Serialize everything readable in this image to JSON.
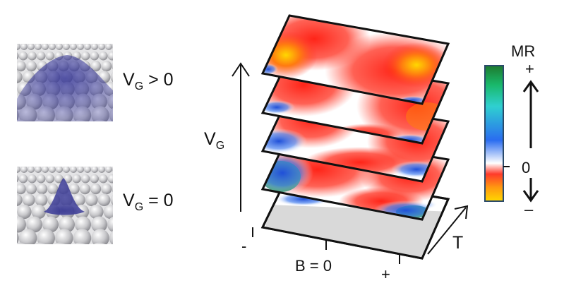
{
  "left_panels": {
    "top_label": {
      "main": "V",
      "sub": "G",
      "rest": " > 0"
    },
    "bottom_label": {
      "main": "V",
      "sub": "G",
      "rest": " = 0"
    }
  },
  "axes": {
    "vg_label": {
      "main": "V",
      "sub": "G"
    },
    "b_axis": {
      "minus": "-",
      "center": "B = 0",
      "plus": "+"
    },
    "t_label": "T"
  },
  "colorbar": {
    "title": "MR",
    "top_sign": "+",
    "zero_label": "0",
    "bottom_sign": "–",
    "stops": [
      "#1e7a2e",
      "#19b86a",
      "#2fd0d0",
      "#2a6cf0",
      "#ffffff",
      "#ff3a2a",
      "#ff9a10",
      "#ffd800"
    ]
  },
  "colors": {
    "sphere_shadow": "#9a9aa0",
    "charge_cloud": "#3a3a9a",
    "ink": "#111111"
  }
}
